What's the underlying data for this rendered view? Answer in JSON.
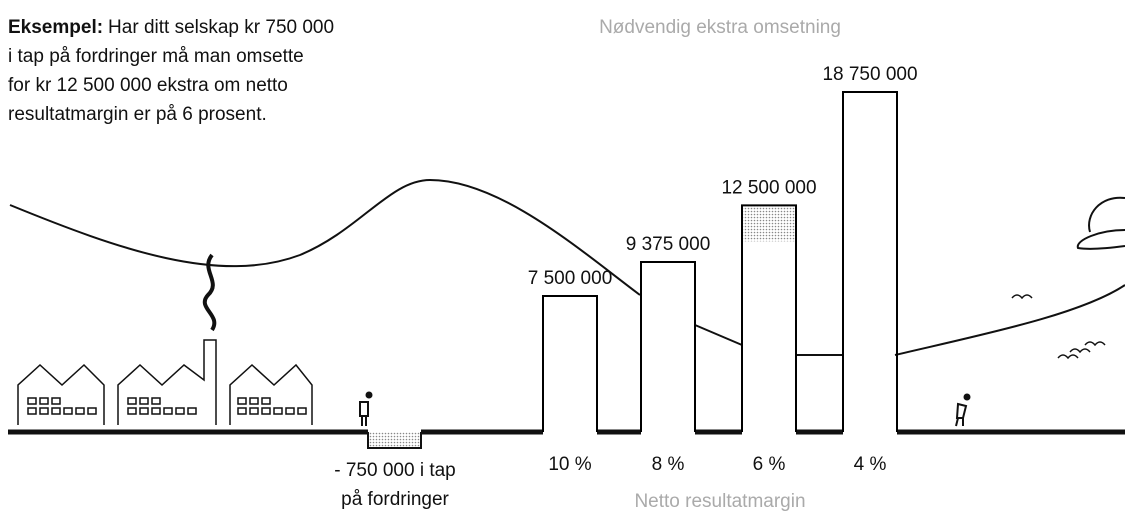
{
  "chart_data": {
    "type": "bar",
    "title": "Nødvendig ekstra omsetning",
    "x_label": "Netto resultatmargin",
    "note": {
      "label": "Eksempel:",
      "lines": [
        "Har ditt selskap kr 750 000",
        "i tap på fordringer må man omsette",
        "for kr 12 500 000 ekstra om netto",
        "resultatmargin er på 6 prosent."
      ]
    },
    "loss_label": [
      "- 750 000 i tap",
      "på fordringer"
    ],
    "categories": [
      "10 %",
      "8 %",
      "6 %",
      "4 %"
    ],
    "values": [
      7500000,
      9375000,
      12500000,
      18750000
    ],
    "value_labels": [
      "7 500 000",
      "9 375 000",
      "12 500 000",
      "18 750 000"
    ],
    "color": "#000000"
  }
}
